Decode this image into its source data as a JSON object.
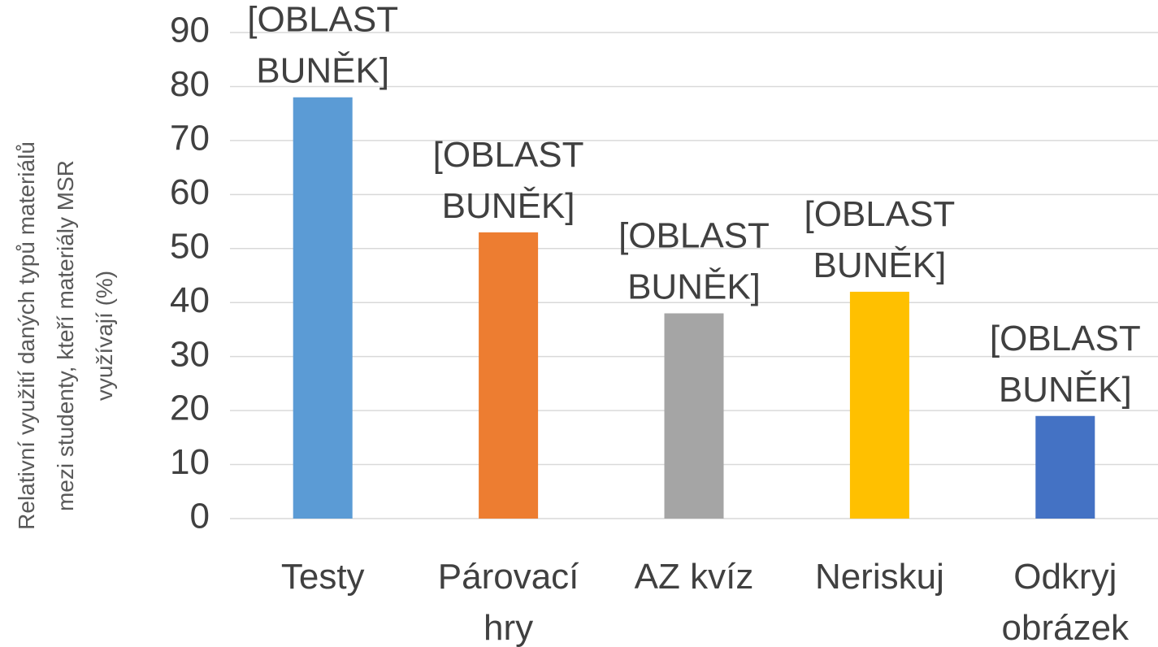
{
  "chart_data": {
    "type": "bar",
    "ylabel": [
      "Relativní využití daných typů materiálů",
      "mezi studenty, kteří materiály MSR",
      "využívají (%)"
    ],
    "categories": [
      "Testy",
      "Párovací\nhry",
      "AZ kvíz",
      "Neriskuj",
      "Odkryj\nobrázek"
    ],
    "values": [
      78,
      53,
      38,
      42,
      19
    ],
    "data_labels": [
      "[OBLAST\nBUNĚK]",
      "[OBLAST\nBUNĚK]",
      "[OBLAST\nBUNĚK]",
      "[OBLAST\nBUNĚK]",
      "[OBLAST\nBUNĚK]"
    ],
    "colors": [
      "#5b9bd5",
      "#ed7d31",
      "#a5a5a5",
      "#ffc000",
      "#4472c4"
    ],
    "ylim": [
      0,
      90
    ],
    "yticks": [
      0,
      10,
      20,
      30,
      40,
      50,
      60,
      70,
      80,
      90
    ],
    "grid": true
  }
}
